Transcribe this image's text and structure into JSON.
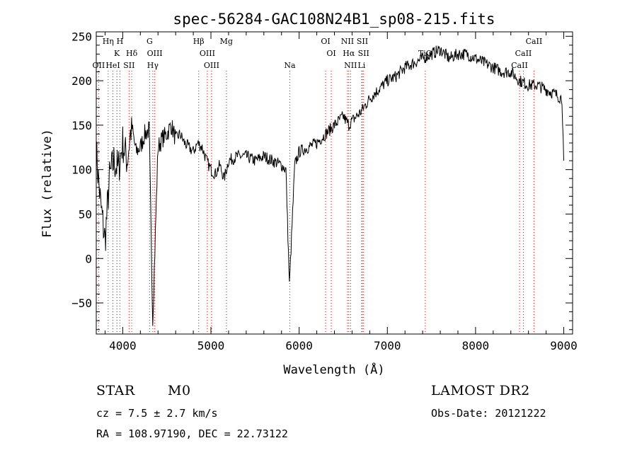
{
  "chart_data": {
    "type": "line",
    "title": "spec-56284-GAC108N24B1_sp08-215.fits",
    "xlabel": "Wavelength (Å)",
    "ylabel": "Flux (relative)",
    "xlim": [
      3700,
      9100
    ],
    "ylim": [
      -85,
      255
    ],
    "xticks": [
      4000,
      5000,
      6000,
      7000,
      8000,
      9000
    ],
    "yticks": [
      -50,
      0,
      50,
      100,
      150,
      200,
      250
    ],
    "grid": false,
    "legend": "none",
    "series": [
      {
        "values_note": "",
        "x": [
          3700,
          3750,
          3800,
          3850,
          3900,
          3950,
          4000,
          4050,
          4100,
          4150,
          4200,
          4250,
          4300,
          4340,
          4400,
          4450,
          4500,
          4550,
          4600,
          4650,
          4700,
          4750,
          4800,
          4850,
          4900,
          4950,
          5000,
          5050,
          5100,
          5150,
          5200,
          5300,
          5400,
          5500,
          5600,
          5700,
          5800,
          5850,
          5890,
          5950,
          6000,
          6100,
          6200,
          6300,
          6400,
          6500,
          6563,
          6600,
          6700,
          6800,
          6900,
          7000,
          7100,
          7200,
          7300,
          7400,
          7500,
          7600,
          7700,
          7800,
          7900,
          8000,
          8100,
          8200,
          8300,
          8400,
          8500,
          8600,
          8700,
          8800,
          8900,
          8980,
          9000
        ],
        "y": [
          120,
          60,
          20,
          90,
          110,
          100,
          130,
          110,
          150,
          120,
          125,
          140,
          145,
          -70,
          125,
          135,
          140,
          150,
          135,
          140,
          130,
          125,
          120,
          130,
          125,
          110,
          100,
          95,
          105,
          90,
          110,
          115,
          115,
          110,
          115,
          110,
          105,
          100,
          -30,
          105,
          120,
          125,
          130,
          140,
          150,
          160,
          150,
          155,
          165,
          180,
          190,
          200,
          205,
          215,
          220,
          225,
          230,
          235,
          225,
          230,
          230,
          225,
          220,
          215,
          210,
          210,
          200,
          195,
          195,
          190,
          185,
          180,
          110
        ]
      }
    ],
    "lines": [
      {
        "label": "OII",
        "x": 3727,
        "row": 3,
        "color": "#e00000"
      },
      {
        "label": "Hη",
        "x": 3835,
        "row": 0,
        "color": "#444444"
      },
      {
        "label": "H",
        "x": 3968,
        "row": 0,
        "color": "#444444"
      },
      {
        "label": "K",
        "x": 3934,
        "row": 1,
        "color": "#444444"
      },
      {
        "label": "HeI",
        "x": 3889,
        "row": 3,
        "color": "#444444"
      },
      {
        "label": "SII",
        "x": 4072,
        "row": 3,
        "color": "#e00000"
      },
      {
        "label": "Hδ",
        "x": 4102,
        "row": 1,
        "color": "#444444"
      },
      {
        "label": "G",
        "x": 4305,
        "row": 0,
        "color": "#444444"
      },
      {
        "label": "OIII",
        "x": 4363,
        "row": 1,
        "color": "#e00000"
      },
      {
        "label": "Hγ",
        "x": 4341,
        "row": 3,
        "color": "#444444"
      },
      {
        "label": "Hβ",
        "x": 4861,
        "row": 0,
        "color": "#444444"
      },
      {
        "label": "OIII",
        "x": 4959,
        "row": 1,
        "color": "#e00000"
      },
      {
        "label": "OIII",
        "x": 5007,
        "row": 3,
        "color": "#e00000"
      },
      {
        "label": "Mg",
        "x": 5175,
        "row": 0,
        "color": "#444444"
      },
      {
        "label": "Na",
        "x": 5894,
        "row": 3,
        "color": "#444444"
      },
      {
        "label": "OI",
        "x": 6300,
        "row": 0,
        "color": "#e00000"
      },
      {
        "label": "OI",
        "x": 6364,
        "row": 1,
        "color": "#e00000"
      },
      {
        "label": "NII",
        "x": 6548,
        "row": 0,
        "color": "#e00000"
      },
      {
        "label": "SII",
        "x": 6717,
        "row": 0,
        "color": "#e00000"
      },
      {
        "label": "Hα",
        "x": 6563,
        "row": 1,
        "color": "#444444"
      },
      {
        "label": "SII",
        "x": 6731,
        "row": 1,
        "color": "#e00000"
      },
      {
        "label": "NII",
        "x": 6583,
        "row": 3,
        "color": "#e00000"
      },
      {
        "label": "Li",
        "x": 6708,
        "row": 3,
        "color": "#444444"
      },
      {
        "label": "TiO",
        "x": 7430,
        "row": 1,
        "color": "#e00000"
      },
      {
        "label": "CaII",
        "x": 8662,
        "row": 0,
        "color": "#e00000"
      },
      {
        "label": "CaII",
        "x": 8542,
        "row": 1,
        "color": "#e00000"
      },
      {
        "label": "CaII",
        "x": 8498,
        "row": 3,
        "color": "#e00000"
      }
    ]
  },
  "info": {
    "class": "STAR",
    "subclass": "M0",
    "survey": "LAMOST DR2",
    "cz": "cz = 7.5 ± 2.7 km/s",
    "obsdate": "Obs-Date: 20121222",
    "radec": "RA = 108.97190, DEC =  22.73122"
  }
}
